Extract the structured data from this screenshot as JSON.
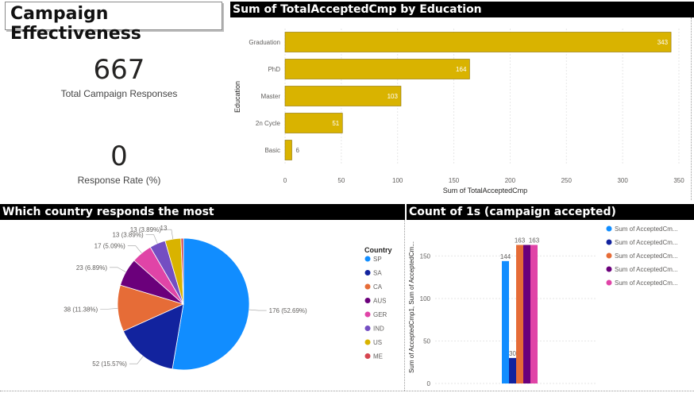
{
  "title": "Campaign Effectiveness",
  "kpis": [
    {
      "value": "667",
      "label": "Total Campaign Responses"
    },
    {
      "value": "0",
      "label": "Response Rate (%)"
    }
  ],
  "education_chart": {
    "header": "Sum of TotalAcceptedCmp by Education",
    "chart_data": {
      "type": "bar",
      "orientation": "horizontal",
      "categories": [
        "Graduation",
        "PhD",
        "Master",
        "2n Cycle",
        "Basic"
      ],
      "values": [
        343,
        164,
        103,
        51,
        6
      ],
      "value_labels": [
        "343",
        "164",
        "103",
        "51",
        "6"
      ],
      "xlabel": "Sum of TotalAcceptedCmp",
      "ylabel": "Education",
      "xlim": [
        0,
        350
      ],
      "ticks": [
        "0",
        "50",
        "100",
        "150",
        "200",
        "250",
        "300",
        "350"
      ],
      "tick_values": [
        0,
        50,
        100,
        150,
        200,
        250,
        300,
        350
      ],
      "color": "#d9b300"
    }
  },
  "country_chart": {
    "header": "Which country responds the most",
    "legend_title": "Country",
    "chart_data": {
      "type": "pie",
      "categories": [
        "SP",
        "SA",
        "CA",
        "AUS",
        "GER",
        "IND",
        "US",
        "ME"
      ],
      "values": [
        176,
        52,
        38,
        23,
        17,
        13,
        13,
        2
      ],
      "data_labels": [
        "176 (52.69%)",
        "52 (15.57%)",
        "38 (11.38%)",
        "23 (6.89%)",
        "17 (5.09%)",
        "13 (3.89%)",
        "13 (3.89%)",
        ""
      ],
      "colors": [
        "#118dff",
        "#12239e",
        "#e66c37",
        "#6b007b",
        "#e044a7",
        "#744ec2",
        "#d9b300",
        "#d64550"
      ]
    },
    "extra_label": "13"
  },
  "accepted_chart": {
    "header": "Count of 1s (campaign accepted)",
    "chart_data": {
      "type": "bar",
      "categories": [
        ""
      ],
      "series": [
        {
          "name": "Sum of AcceptedCm...",
          "values": [
            144
          ],
          "color": "#118dff"
        },
        {
          "name": "Sum of AcceptedCm...",
          "values": [
            30
          ],
          "color": "#12239e"
        },
        {
          "name": "Sum of AcceptedCm...",
          "values": [
            163
          ],
          "color": "#e66c37"
        },
        {
          "name": "Sum of AcceptedCm...",
          "values": [
            163
          ],
          "color": "#6b007b"
        },
        {
          "name": "Sum of AcceptedCm...",
          "values": [
            163
          ],
          "color": "#e044a7"
        }
      ],
      "value_labels": [
        "144",
        "30",
        "163",
        "",
        "163"
      ],
      "ylabel": "Sum of AcceptedCmp1, Sum of AcceptedCm...",
      "ylim": [
        0,
        170
      ],
      "ticks": [
        "0",
        "50",
        "100",
        "150"
      ],
      "tick_values": [
        0,
        50,
        100,
        150
      ]
    }
  }
}
